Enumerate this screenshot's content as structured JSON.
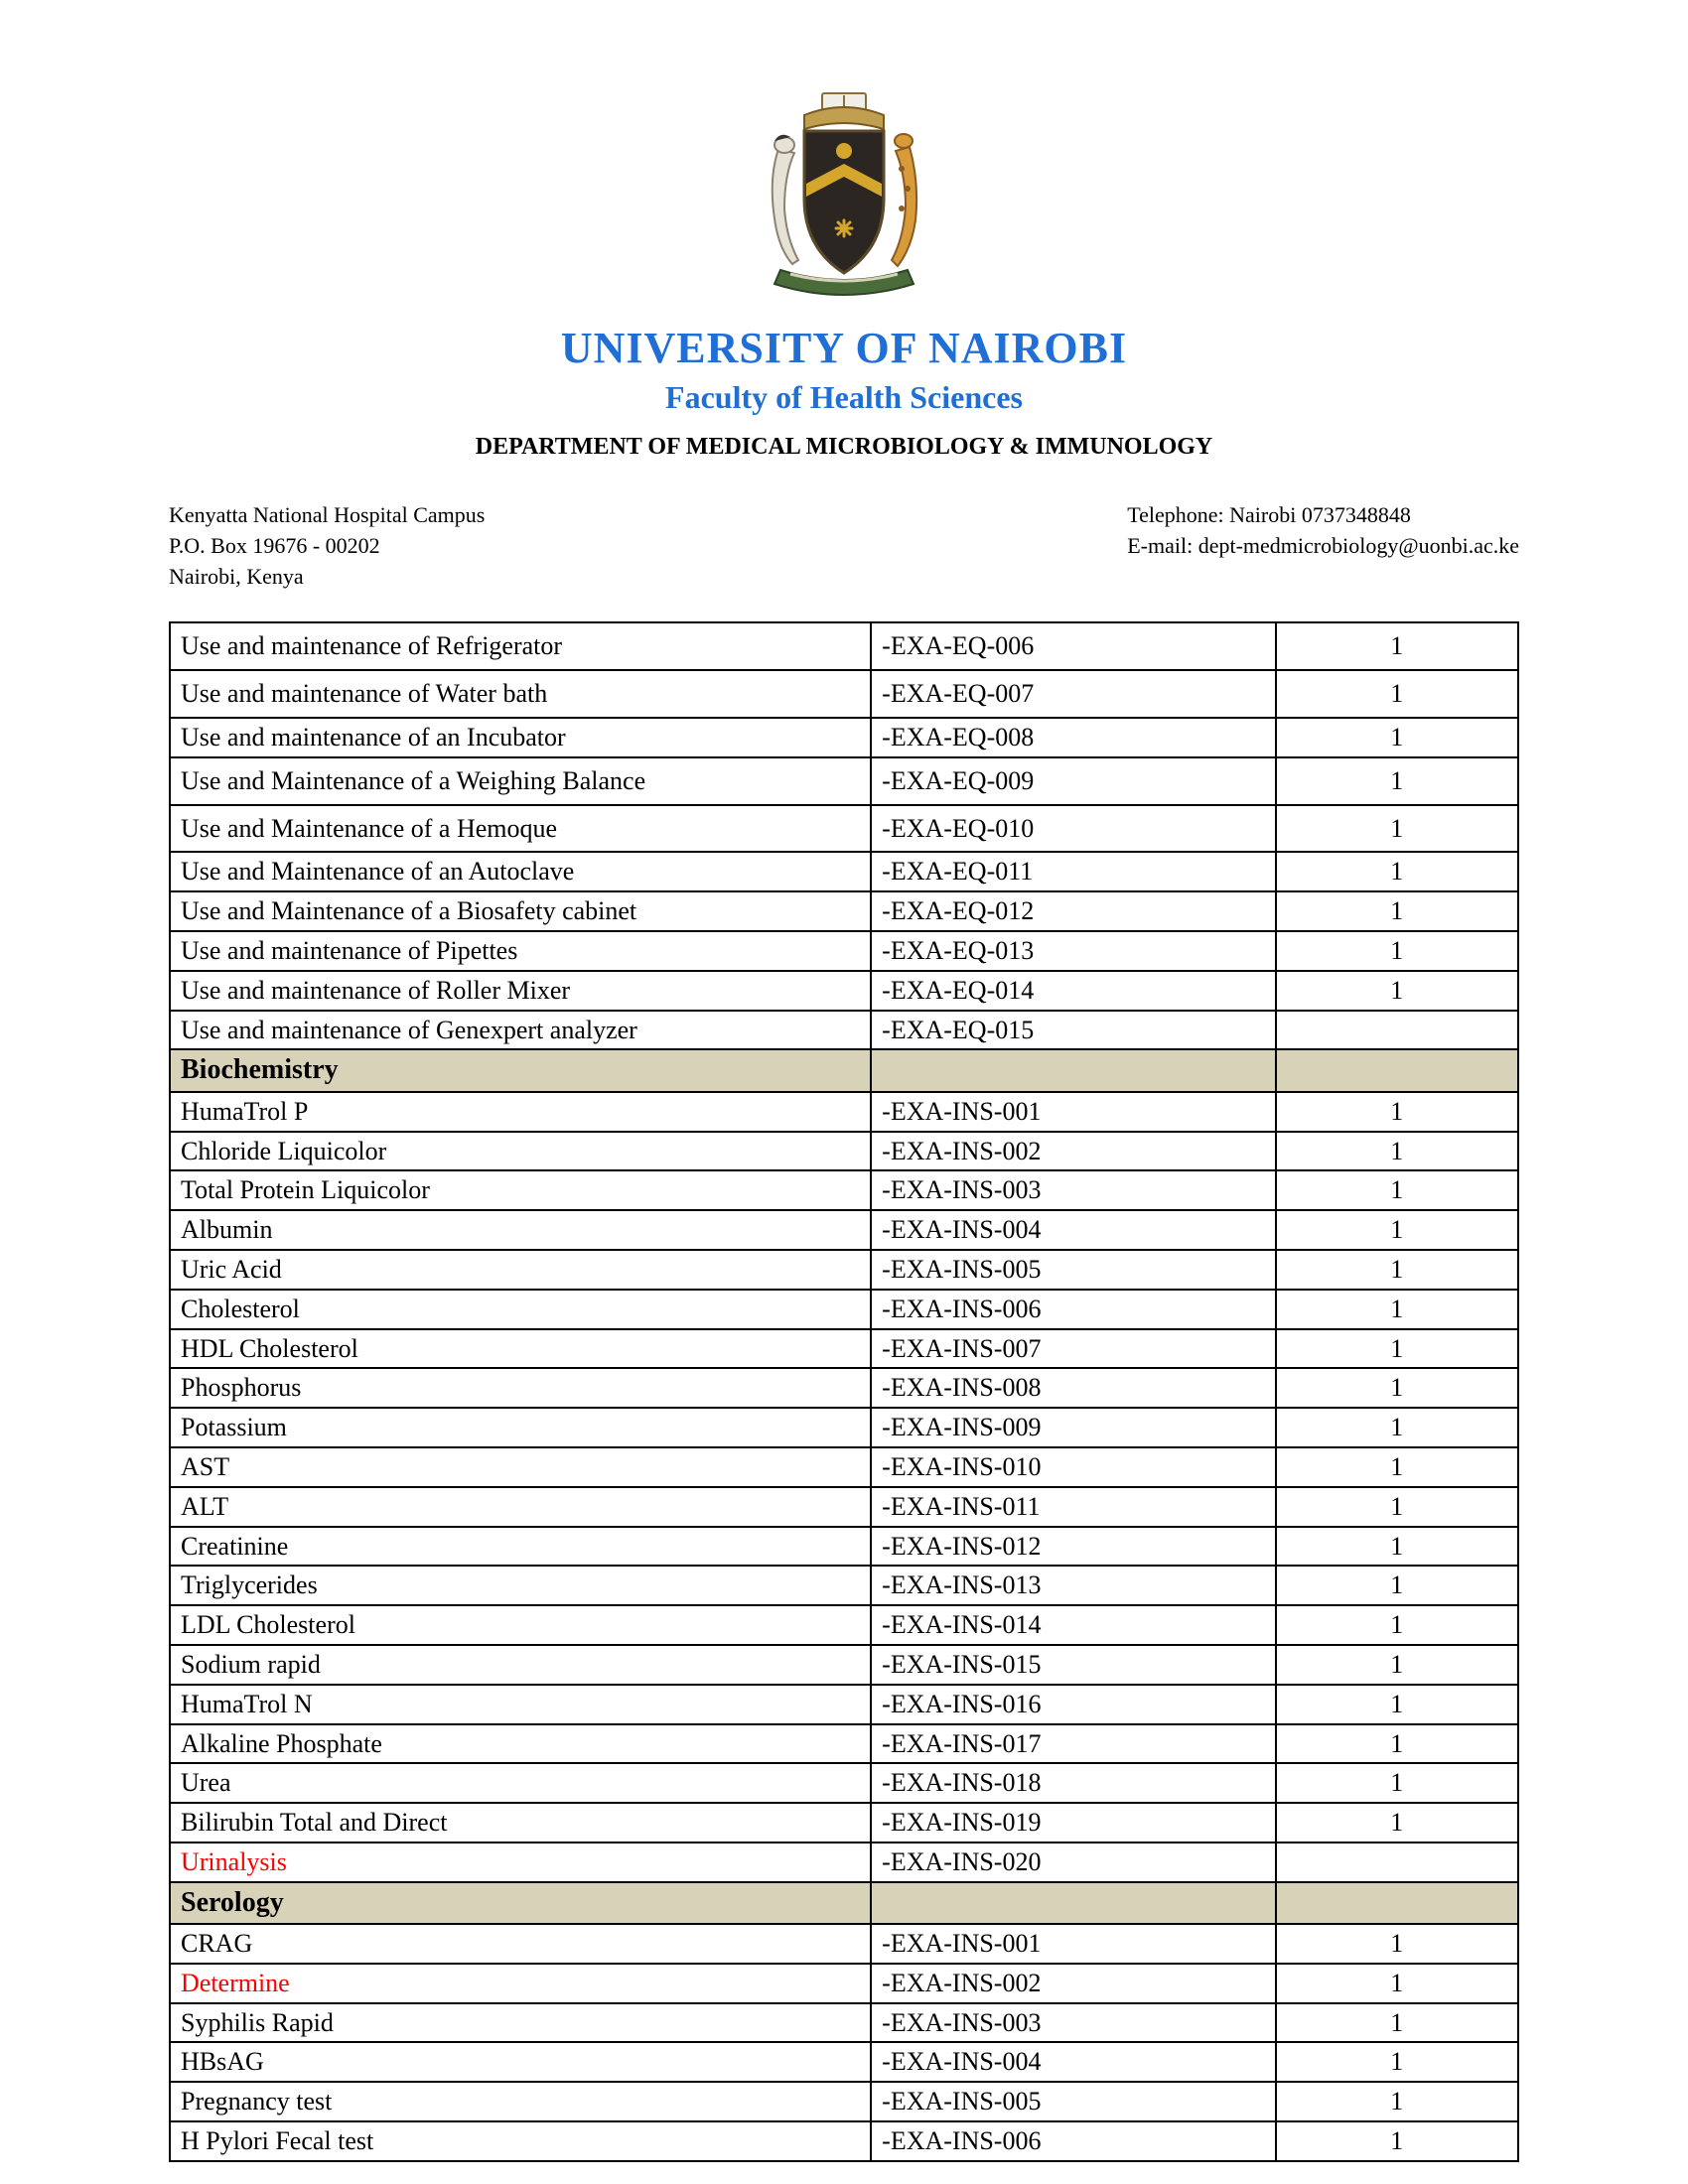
{
  "header": {
    "title": "UNIVERSITY OF NAIROBI",
    "subtitle": "Faculty of Health Sciences",
    "department": "DEPARTMENT OF MEDICAL MICROBIOLOGY & IMMUNOLOGY"
  },
  "contact": {
    "left": "Kenyatta National Hospital Campus\nP.O. Box 19676 - 00202\nNairobi, Kenya",
    "right": "Telephone: Nairobi 0737348848\nE-mail:  dept-medmicrobiology@uonbi.ac.ke"
  },
  "colors": {
    "title_blue": "#1f6fd6",
    "section_bg": "#d8d2b8",
    "red": "#ff0000",
    "border": "#000000",
    "background": "#ffffff"
  },
  "table": {
    "column_widths_pct": [
      52,
      30,
      18
    ],
    "rows": [
      {
        "type": "row",
        "tall": true,
        "name": "Use and maintenance of Refrigerator",
        "code": "-EXA-EQ-006",
        "count": "1"
      },
      {
        "type": "row",
        "tall": true,
        "name": "Use and maintenance of Water bath",
        "code": "-EXA-EQ-007",
        "count": "1"
      },
      {
        "type": "row",
        "name": "Use and maintenance of an Incubator",
        "code": "-EXA-EQ-008",
        "count": "1"
      },
      {
        "type": "row",
        "tall": true,
        "name": "Use and Maintenance of a Weighing Balance",
        "code": "-EXA-EQ-009",
        "count": "1"
      },
      {
        "type": "row",
        "tall": true,
        "name": "Use and Maintenance of a Hemoque",
        "code": "-EXA-EQ-010",
        "count": "1"
      },
      {
        "type": "row",
        "name": "Use and Maintenance of an Autoclave",
        "code": "-EXA-EQ-011",
        "count": "1"
      },
      {
        "type": "row",
        "name": "Use and Maintenance of a Biosafety cabinet",
        "code": "-EXA-EQ-012",
        "count": "1"
      },
      {
        "type": "row",
        "name": "Use and maintenance of Pipettes",
        "code": "-EXA-EQ-013",
        "count": "1"
      },
      {
        "type": "row",
        "name": "Use and maintenance of Roller Mixer",
        "code": "-EXA-EQ-014",
        "count": "1"
      },
      {
        "type": "row",
        "name": "Use and maintenance of Genexpert analyzer",
        "code": "-EXA-EQ-015",
        "count": ""
      },
      {
        "type": "section",
        "label": "Biochemistry"
      },
      {
        "type": "row",
        "name": "HumaTrol P",
        "code": "-EXA-INS-001",
        "count": "1"
      },
      {
        "type": "row",
        "name": "Chloride Liquicolor",
        "code": "-EXA-INS-002",
        "count": "1"
      },
      {
        "type": "row",
        "name": "Total Protein Liquicolor",
        "code": "-EXA-INS-003",
        "count": "1"
      },
      {
        "type": "row",
        "name": "Albumin",
        "code": "-EXA-INS-004",
        "count": "1"
      },
      {
        "type": "row",
        "name": "Uric Acid",
        "code": "-EXA-INS-005",
        "count": "1"
      },
      {
        "type": "row",
        "name": "Cholesterol",
        "code": "-EXA-INS-006",
        "count": "1"
      },
      {
        "type": "row",
        "name": "HDL Cholesterol",
        "code": "-EXA-INS-007",
        "count": "1"
      },
      {
        "type": "row",
        "name": "Phosphorus",
        "code": "-EXA-INS-008",
        "count": "1"
      },
      {
        "type": "row",
        "name": "Potassium",
        "code": "-EXA-INS-009",
        "count": "1"
      },
      {
        "type": "row",
        "name": "AST",
        "code": "-EXA-INS-010",
        "count": "1"
      },
      {
        "type": "row",
        "name": "ALT",
        "code": "-EXA-INS-011",
        "count": "1"
      },
      {
        "type": "row",
        "name": "Creatinine",
        "code": "-EXA-INS-012",
        "count": "1"
      },
      {
        "type": "row",
        "name": "Triglycerides",
        "code": "-EXA-INS-013",
        "count": "1"
      },
      {
        "type": "row",
        "name": "LDL Cholesterol",
        "code": "-EXA-INS-014",
        "count": "1"
      },
      {
        "type": "row",
        "name": "Sodium rapid",
        "code": "-EXA-INS-015",
        "count": "1"
      },
      {
        "type": "row",
        "name": "HumaTrol N",
        "code": "-EXA-INS-016",
        "count": "1"
      },
      {
        "type": "row",
        "name": "Alkaline Phosphate",
        "code": "-EXA-INS-017",
        "count": "1"
      },
      {
        "type": "row",
        "name": "Urea",
        "code": "-EXA-INS-018",
        "count": "1"
      },
      {
        "type": "row",
        "name": "Bilirubin Total and Direct",
        "code": "-EXA-INS-019",
        "count": "1"
      },
      {
        "type": "row",
        "name": "Urinalysis",
        "name_color": "red",
        "code": "-EXA-INS-020",
        "count": ""
      },
      {
        "type": "section",
        "label": "Serology"
      },
      {
        "type": "row",
        "name": "CRAG",
        "code": "-EXA-INS-001",
        "count": "1"
      },
      {
        "type": "row",
        "name": "Determine",
        "name_color": "red",
        "code": "-EXA-INS-002",
        "count": "1"
      },
      {
        "type": "row",
        "name": "Syphilis Rapid",
        "code": "-EXA-INS-003",
        "count": "1"
      },
      {
        "type": "row",
        "name": "HBsAG",
        "code": "-EXA-INS-004",
        "count": "1"
      },
      {
        "type": "row",
        "name": "Pregnancy test",
        "code": "-EXA-INS-005",
        "count": "1"
      },
      {
        "type": "row",
        "name": "H Pylori Fecal test",
        "code": "-EXA-INS-006",
        "count": "1"
      }
    ]
  }
}
